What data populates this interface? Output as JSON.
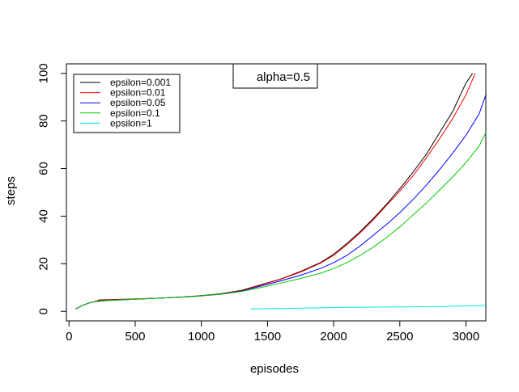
{
  "chart_data": {
    "type": "line",
    "xlabel": "episodes",
    "ylabel": "steps",
    "xlim": [
      -20,
      3150
    ],
    "ylim": [
      -4,
      104
    ],
    "x_ticks": [
      0,
      500,
      1000,
      1500,
      2000,
      2500,
      3000
    ],
    "y_ticks": [
      0,
      20,
      40,
      60,
      80,
      100
    ],
    "grid": false,
    "legend_position": "top-left",
    "annotation": "alpha=0.5",
    "series": [
      {
        "name": "epsilon=0.001",
        "color": "#000000",
        "points": [
          [
            50,
            1
          ],
          [
            100,
            2.5
          ],
          [
            150,
            3.5
          ],
          [
            200,
            4.2
          ],
          [
            230,
            4.8
          ],
          [
            300,
            4.9
          ],
          [
            500,
            5.2
          ],
          [
            700,
            5.6
          ],
          [
            900,
            6.2
          ],
          [
            1000,
            6.6
          ],
          [
            1150,
            7.4
          ],
          [
            1300,
            8.8
          ],
          [
            1450,
            11.2
          ],
          [
            1600,
            13.6
          ],
          [
            1750,
            16.8
          ],
          [
            1900,
            20.5
          ],
          [
            2000,
            24
          ],
          [
            2100,
            28.5
          ],
          [
            2200,
            33.5
          ],
          [
            2300,
            39
          ],
          [
            2400,
            45
          ],
          [
            2500,
            51.5
          ],
          [
            2600,
            58.5
          ],
          [
            2700,
            66
          ],
          [
            2800,
            75
          ],
          [
            2900,
            84
          ],
          [
            3000,
            96
          ],
          [
            3050,
            100
          ]
        ]
      },
      {
        "name": "epsilon=0.01",
        "color": "#ff0000",
        "points": [
          [
            50,
            1
          ],
          [
            100,
            2.5
          ],
          [
            150,
            3.5
          ],
          [
            200,
            4.2
          ],
          [
            230,
            4.6
          ],
          [
            300,
            4.8
          ],
          [
            500,
            5.2
          ],
          [
            700,
            5.6
          ],
          [
            900,
            6.1
          ],
          [
            1000,
            6.6
          ],
          [
            1150,
            7.3
          ],
          [
            1300,
            8.7
          ],
          [
            1450,
            11
          ],
          [
            1600,
            13.5
          ],
          [
            1750,
            16.5
          ],
          [
            1900,
            20.2
          ],
          [
            2000,
            23.5
          ],
          [
            2100,
            28
          ],
          [
            2200,
            33
          ],
          [
            2300,
            38.5
          ],
          [
            2400,
            44.5
          ],
          [
            2500,
            50.5
          ],
          [
            2600,
            57
          ],
          [
            2700,
            64.5
          ],
          [
            2800,
            72.5
          ],
          [
            2900,
            81
          ],
          [
            3000,
            91
          ],
          [
            3070,
            100
          ]
        ]
      },
      {
        "name": "epsilon=0.05",
        "color": "#0000ff",
        "points": [
          [
            50,
            1
          ],
          [
            100,
            2.5
          ],
          [
            150,
            3.5
          ],
          [
            200,
            4.1
          ],
          [
            300,
            4.6
          ],
          [
            500,
            5.1
          ],
          [
            700,
            5.6
          ],
          [
            900,
            6.1
          ],
          [
            1000,
            6.5
          ],
          [
            1150,
            7.2
          ],
          [
            1300,
            8.5
          ],
          [
            1450,
            10.6
          ],
          [
            1600,
            12.8
          ],
          [
            1750,
            15.2
          ],
          [
            1900,
            18
          ],
          [
            2000,
            20.5
          ],
          [
            2100,
            23.5
          ],
          [
            2200,
            27.5
          ],
          [
            2300,
            32
          ],
          [
            2400,
            36.5
          ],
          [
            2500,
            41.5
          ],
          [
            2600,
            47
          ],
          [
            2700,
            53
          ],
          [
            2800,
            59.5
          ],
          [
            2900,
            66.5
          ],
          [
            3000,
            74
          ],
          [
            3100,
            83
          ],
          [
            3150,
            91
          ]
        ]
      },
      {
        "name": "epsilon=0.1",
        "color": "#00cd00",
        "points": [
          [
            50,
            1
          ],
          [
            100,
            2.5
          ],
          [
            150,
            3.5
          ],
          [
            200,
            4.1
          ],
          [
            300,
            4.6
          ],
          [
            500,
            5.1
          ],
          [
            700,
            5.6
          ],
          [
            900,
            6.1
          ],
          [
            1000,
            6.5
          ],
          [
            1150,
            7.2
          ],
          [
            1300,
            8.3
          ],
          [
            1450,
            10
          ],
          [
            1600,
            11.9
          ],
          [
            1750,
            13.8
          ],
          [
            1900,
            16
          ],
          [
            2000,
            18
          ],
          [
            2100,
            20.5
          ],
          [
            2200,
            23.5
          ],
          [
            2300,
            27
          ],
          [
            2400,
            31
          ],
          [
            2500,
            35.5
          ],
          [
            2600,
            40.5
          ],
          [
            2700,
            45.5
          ],
          [
            2800,
            51
          ],
          [
            2900,
            56.5
          ],
          [
            3000,
            62.5
          ],
          [
            3100,
            69.5
          ],
          [
            3150,
            75
          ]
        ]
      },
      {
        "name": "epsilon=1",
        "color": "#00e5e5",
        "points": [
          [
            1370,
            1
          ],
          [
            1600,
            1.2
          ],
          [
            2000,
            1.6
          ],
          [
            2400,
            1.8
          ],
          [
            2800,
            2
          ],
          [
            3050,
            2.4
          ],
          [
            3150,
            2.5
          ]
        ]
      }
    ]
  }
}
